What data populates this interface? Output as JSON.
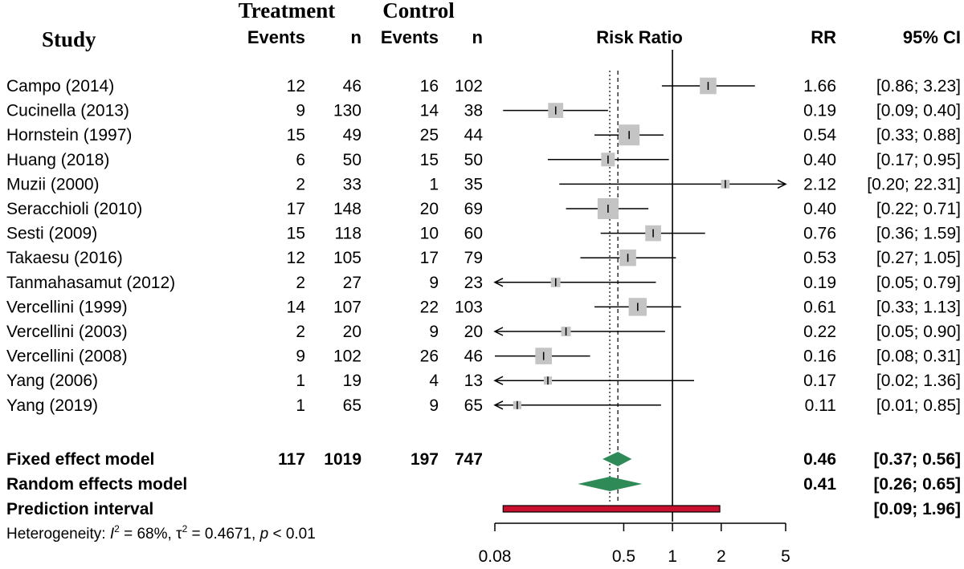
{
  "header": {
    "study": "Study",
    "treatment": "Treatment",
    "control": "Control",
    "events": "Events",
    "n": "n",
    "risk_ratio": "Risk Ratio",
    "rr": "RR",
    "ci": "95% CI"
  },
  "chart_data": {
    "type": "forest",
    "x_scale": "log",
    "xlim": [
      0.08,
      5
    ],
    "x_ticks": [
      "0.08",
      "0.5",
      "1",
      "2",
      "5"
    ],
    "null_line": 1,
    "fixed_line": 0.46,
    "random_line": 0.41,
    "studies": [
      {
        "name": "Campo (2014)",
        "t_events": "12",
        "t_n": "46",
        "c_events": "16",
        "c_n": "102",
        "rr": 1.66,
        "lo": 0.86,
        "hi": 3.23,
        "rr_text": "1.66",
        "ci_text": "[0.86;  3.23]",
        "weight": 0.7
      },
      {
        "name": "Cucinella (2013)",
        "t_events": "9",
        "t_n": "130",
        "c_events": "14",
        "c_n": "38",
        "rr": 0.19,
        "lo": 0.09,
        "hi": 0.4,
        "rr_text": "0.19",
        "ci_text": "[0.09;  0.40]",
        "weight": 0.6
      },
      {
        "name": "Hornstein (1997)",
        "t_events": "15",
        "t_n": "49",
        "c_events": "25",
        "c_n": "44",
        "rr": 0.54,
        "lo": 0.33,
        "hi": 0.88,
        "rr_text": "0.54",
        "ci_text": "[0.33;  0.88]",
        "weight": 1.0
      },
      {
        "name": "Huang (2018)",
        "t_events": "6",
        "t_n": "50",
        "c_events": "15",
        "c_n": "50",
        "rr": 0.4,
        "lo": 0.17,
        "hi": 0.95,
        "rr_text": "0.40",
        "ci_text": "[0.17;  0.95]",
        "weight": 0.5
      },
      {
        "name": "Muzii (2000)",
        "t_events": "2",
        "t_n": "33",
        "c_events": "1",
        "c_n": "35",
        "rr": 2.12,
        "lo": 0.2,
        "hi": 22.31,
        "rr_text": "2.12",
        "ci_text": "[0.20; 22.31]",
        "weight": 0.15
      },
      {
        "name": "Seracchioli (2010)",
        "t_events": "17",
        "t_n": "148",
        "c_events": "20",
        "c_n": "69",
        "rr": 0.4,
        "lo": 0.22,
        "hi": 0.71,
        "rr_text": "0.40",
        "ci_text": "[0.22;  0.71]",
        "weight": 1.0
      },
      {
        "name": "Sesti (2009)",
        "t_events": "15",
        "t_n": "118",
        "c_events": "10",
        "c_n": "60",
        "rr": 0.76,
        "lo": 0.36,
        "hi": 1.59,
        "rr_text": "0.76",
        "ci_text": "[0.36;  1.59]",
        "weight": 0.65
      },
      {
        "name": "Takaesu (2016)",
        "t_events": "12",
        "t_n": "105",
        "c_events": "17",
        "c_n": "79",
        "rr": 0.53,
        "lo": 0.27,
        "hi": 1.05,
        "rr_text": "0.53",
        "ci_text": "[0.27;  1.05]",
        "weight": 0.7
      },
      {
        "name": "Tanmahasamut (2012)",
        "t_events": "2",
        "t_n": "27",
        "c_events": "9",
        "c_n": "23",
        "rr": 0.19,
        "lo": 0.05,
        "hi": 0.79,
        "rr_text": "0.19",
        "ci_text": "[0.05;  0.79]",
        "weight": 0.22
      },
      {
        "name": "Vercellini (1999)",
        "t_events": "14",
        "t_n": "107",
        "c_events": "22",
        "c_n": "103",
        "rr": 0.61,
        "lo": 0.33,
        "hi": 1.13,
        "rr_text": "0.61",
        "ci_text": "[0.33;  1.13]",
        "weight": 0.8
      },
      {
        "name": "Vercellini (2003)",
        "t_events": "2",
        "t_n": "20",
        "c_events": "9",
        "c_n": "20",
        "rr": 0.22,
        "lo": 0.05,
        "hi": 0.9,
        "rr_text": "0.22",
        "ci_text": "[0.05;  0.90]",
        "weight": 0.22
      },
      {
        "name": "Vercellini (2008)",
        "t_events": "9",
        "t_n": "102",
        "c_events": "26",
        "c_n": "46",
        "rr": 0.16,
        "lo": 0.08,
        "hi": 0.31,
        "rr_text": "0.16",
        "ci_text": "[0.08;  0.31]",
        "weight": 0.7
      },
      {
        "name": "Yang (2006)",
        "t_events": "1",
        "t_n": "19",
        "c_events": "4",
        "c_n": "13",
        "rr": 0.17,
        "lo": 0.02,
        "hi": 1.36,
        "rr_text": "0.17",
        "ci_text": "[0.02;  1.36]",
        "weight": 0.12
      },
      {
        "name": "Yang (2019)",
        "t_events": "1",
        "t_n": "65",
        "c_events": "9",
        "c_n": "65",
        "rr": 0.11,
        "lo": 0.01,
        "hi": 0.85,
        "rr_text": "0.11",
        "ci_text": "[0.01;  0.85]",
        "weight": 0.12
      }
    ],
    "pooled": [
      {
        "name": "Fixed effect model",
        "t_events": "117",
        "t_n": "1019",
        "c_events": "197",
        "c_n": "747",
        "rr": 0.46,
        "lo": 0.37,
        "hi": 0.56,
        "rr_text": "0.46",
        "ci_text": "[0.37;  0.56]",
        "kind": "diamond"
      },
      {
        "name": "Random effects model",
        "t_events": "",
        "t_n": "",
        "c_events": "",
        "c_n": "",
        "rr": 0.41,
        "lo": 0.26,
        "hi": 0.65,
        "rr_text": "0.41",
        "ci_text": "[0.26;  0.65]",
        "kind": "diamond"
      },
      {
        "name": "Prediction interval",
        "t_events": "",
        "t_n": "",
        "c_events": "",
        "c_n": "",
        "rr": null,
        "lo": 0.09,
        "hi": 1.96,
        "rr_text": "",
        "ci_text": "[0.09;  1.96]",
        "kind": "bar"
      }
    ],
    "heterogeneity": {
      "prefix": "Heterogeneity: ",
      "i2_symbol": "I",
      "i2_sup": "2",
      "i2_value": " = 68%, ",
      "tau2_symbol": "τ",
      "tau2_sup": "2",
      "tau2_value": " = 0.4671, ",
      "p_symbol": "p",
      "p_value": " < 0.01"
    },
    "colors": {
      "square": "#c4c4c4",
      "diamond": "#2e8b57",
      "prediction": "#c8102e",
      "line": "#000000"
    }
  }
}
